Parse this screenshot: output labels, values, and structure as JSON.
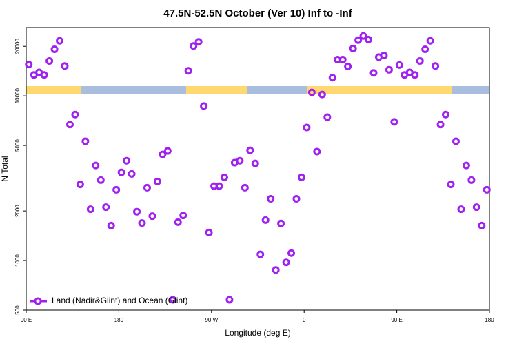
{
  "chart_data": {
    "type": "scatter",
    "title": "47.5N-52.5N October (Ver 10)   Inf to -Inf",
    "x_label": "Longitude (deg E)",
    "y_label": "N Total",
    "xlim": [
      90,
      540
    ],
    "xticks": [
      {
        "value": 90,
        "label": "90 E"
      },
      180,
      {
        "value": 270,
        "label": "90 W"
      },
      {
        "value": 360,
        "label": "0"
      },
      {
        "value": 450,
        "label": "90 E"
      },
      {
        "value": 540,
        "label": "180"
      }
    ],
    "ylim": [
      500,
      26000
    ],
    "yticks": [
      500,
      1000,
      2000,
      5000,
      10000,
      20000
    ],
    "log_y": true,
    "legend": "bottom-left",
    "x": [
      92.5,
      97.5,
      102.5,
      107.5,
      112.5,
      117.5,
      122.5,
      127.5,
      132.5,
      137.5,
      142.5,
      147.5,
      152.5,
      157.5,
      162.5,
      167.5,
      172.5,
      177.5,
      182.5,
      187.5,
      192.5,
      197.5,
      202.5,
      207.5,
      212.5,
      217.5,
      222.5,
      227.5,
      232.5,
      237.5,
      242.5,
      247.5,
      252.5,
      257.5,
      262.5,
      267.5,
      272.5,
      277.5,
      282.5,
      287.5,
      292.5,
      297.5,
      302.5,
      307.5,
      312.5,
      317.5,
      322.5,
      327.5,
      332.5,
      337.5,
      342.5,
      347.5,
      352.5,
      357.5,
      362.5,
      367.5,
      372.5,
      377.5,
      382.5,
      387.5,
      392.5,
      397.5,
      402.5,
      407.5,
      412.5,
      417.5,
      422.5,
      427.5,
      432.5,
      437.5,
      442.5,
      447.5,
      452.5,
      457.5,
      462.5,
      467.5,
      472.5,
      477.5,
      482.5,
      487.5,
      492.5,
      497.5,
      502.5,
      507.5,
      512.5,
      517.5,
      522.5,
      527.5,
      532.5,
      537.5
    ],
    "series": [
      {
        "name": "Land (Nadir&Glint) and Ocean (Glint)",
        "color": "#a020f0",
        "values": [
          15500,
          13400,
          13900,
          13400,
          16300,
          19200,
          21600,
          15200,
          6700,
          7700,
          2900,
          5300,
          2050,
          3780,
          3080,
          2110,
          1630,
          2690,
          3430,
          4040,
          3360,
          1980,
          1690,
          2770,
          1860,
          3020,
          4410,
          4630,
          578,
          1710,
          1880,
          14200,
          20100,
          21300,
          8680,
          1480,
          2830,
          2830,
          3200,
          578,
          3930,
          4040,
          2770,
          4670,
          3890,
          1090,
          1760,
          2370,
          877,
          1680,
          975,
          1110,
          2370,
          3200,
          6430,
          10500,
          4590,
          10200,
          7430,
          12900,
          16600,
          16600,
          15100,
          19400,
          21800,
          23100,
          22000,
          13800,
          17200,
          17600,
          14400,
          6950,
          15400,
          13400,
          13900,
          13400,
          16300,
          19200,
          21600,
          15200,
          6700,
          7700,
          2900,
          5300,
          2050,
          3780,
          3080,
          2110,
          1630,
          2690
        ]
      }
    ]
  }
}
